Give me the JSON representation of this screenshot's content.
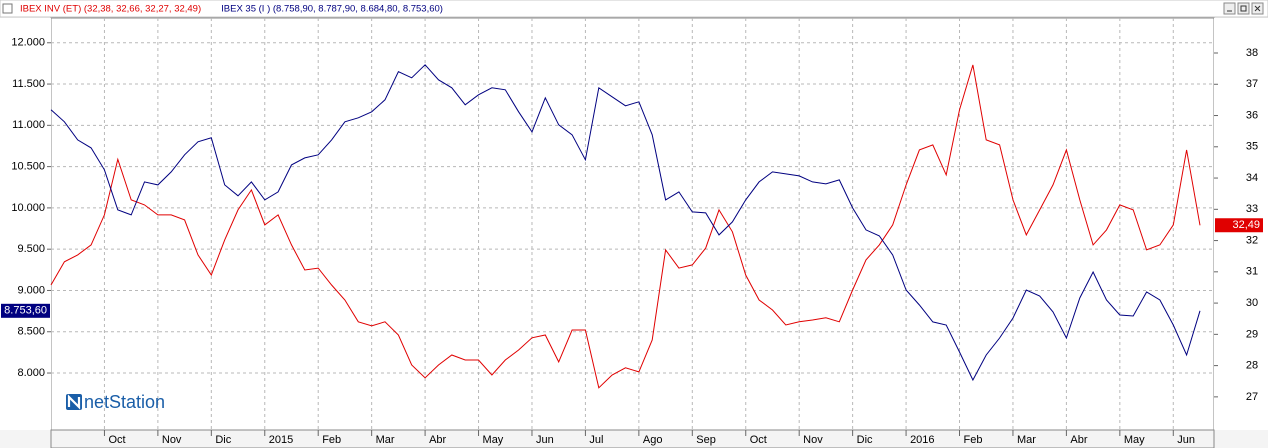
{
  "chart_data": {
    "type": "line",
    "categories": [
      null,
      null,
      null,
      null,
      "Oct",
      null,
      null,
      null,
      "Nov",
      null,
      null,
      null,
      "Dic",
      null,
      null,
      null,
      "2015",
      null,
      null,
      null,
      "Feb",
      null,
      null,
      null,
      "Mar",
      null,
      null,
      null,
      "Abr",
      null,
      null,
      null,
      "May",
      null,
      null,
      null,
      "Jun",
      null,
      null,
      null,
      "Jul",
      null,
      null,
      null,
      "Ago",
      null,
      null,
      null,
      "Sep",
      null,
      null,
      null,
      "Oct",
      null,
      null,
      null,
      "Nov",
      null,
      null,
      null,
      "Dic",
      null,
      null,
      null,
      "2016",
      null,
      null,
      null,
      "Feb",
      null,
      null,
      null,
      "Mar",
      null,
      null,
      null,
      "Abr",
      null,
      null,
      null,
      "May",
      null,
      null,
      null,
      "Jun",
      null,
      null
    ],
    "series": [
      {
        "name": "IBEX INV (ET) (32,38, 32,66, 32,27, 32,49)",
        "color": "#e00000",
        "axis": "y2",
        "values": [
          30.58,
          31.32,
          31.54,
          31.86,
          32.82,
          34.6,
          33.3,
          33.14,
          32.82,
          32.82,
          32.66,
          31.54,
          30.9,
          32.02,
          32.98,
          33.62,
          32.5,
          32.82,
          31.86,
          31.06,
          31.12,
          30.58,
          30.1,
          29.4,
          29.27,
          29.4,
          28.98,
          28.02,
          27.61,
          28.02,
          28.34,
          28.18,
          28.18,
          27.7,
          28.18,
          28.5,
          28.89,
          28.98,
          28.12,
          29.14,
          29.14,
          27.29,
          27.7,
          27.93,
          27.8,
          28.82,
          31.7,
          31.12,
          31.22,
          31.76,
          32.98,
          32.28,
          30.9,
          30.1,
          29.78,
          29.3,
          29.4,
          29.46,
          29.53,
          29.4,
          30.42,
          31.38,
          31.86,
          32.5,
          33.78,
          34.9,
          35.06,
          34.1,
          36.18,
          37.62,
          35.22,
          35.06,
          33.3,
          32.18,
          32.98,
          33.78,
          34.9,
          33.3,
          31.86,
          32.34,
          33.14,
          32.98,
          31.7,
          31.86,
          32.5,
          34.9,
          32.49
        ],
        "value_labels": [
          null,
          null,
          null,
          null,
          null,
          null,
          null,
          null,
          null,
          null,
          null,
          null,
          null,
          null,
          null,
          null,
          null,
          null,
          null,
          null,
          null,
          null,
          null,
          null,
          null,
          null,
          null,
          null,
          null,
          null,
          null,
          null,
          null,
          null,
          null,
          null,
          null,
          null,
          null,
          null,
          null,
          null,
          null,
          null,
          null,
          null,
          null,
          null,
          null,
          null,
          null,
          null,
          null,
          null,
          null,
          null,
          null,
          null,
          null,
          null,
          null,
          null,
          null,
          null,
          null,
          null,
          null,
          null,
          null,
          null,
          null,
          null,
          null,
          null,
          null,
          null,
          null,
          null,
          null,
          null,
          null,
          null,
          null,
          null,
          null,
          null,
          "32,49"
        ]
      },
      {
        "name": "IBEX 35 (I ) (8.758,90, 8.787,90, 8.684,80, 8.753,60)",
        "color": "#000080",
        "axis": "y",
        "values": [
          11188,
          11043,
          10824,
          10727,
          10461,
          9976,
          9915,
          10315,
          10279,
          10436,
          10643,
          10800,
          10849,
          10279,
          10146,
          10315,
          10097,
          10194,
          10521,
          10606,
          10643,
          10824,
          11043,
          11091,
          11164,
          11309,
          11649,
          11576,
          11733,
          11552,
          11455,
          11249,
          11370,
          11455,
          11430,
          11164,
          10921,
          11333,
          11006,
          10885,
          10582,
          11455,
          11346,
          11236,
          11285,
          10885,
          10097,
          10194,
          9952,
          9940,
          9673,
          9830,
          10097,
          10315,
          10436,
          10412,
          10388,
          10315,
          10291,
          10339,
          10000,
          9734,
          9661,
          9430,
          9006,
          8824,
          8619,
          8582,
          8255,
          7915,
          8218,
          8424,
          8667,
          9006,
          8933,
          8740,
          8424,
          8909,
          9224,
          8885,
          8703,
          8691,
          8982,
          8885,
          8582,
          8218,
          8753.6
        ],
        "value_labels": [
          null,
          null,
          null,
          null,
          null,
          null,
          null,
          null,
          null,
          null,
          null,
          null,
          null,
          null,
          null,
          null,
          null,
          null,
          null,
          null,
          null,
          null,
          null,
          null,
          null,
          null,
          null,
          null,
          null,
          null,
          null,
          null,
          null,
          null,
          null,
          null,
          null,
          null,
          null,
          null,
          null,
          null,
          null,
          null,
          null,
          null,
          null,
          null,
          null,
          null,
          null,
          null,
          null,
          null,
          null,
          null,
          null,
          null,
          null,
          null,
          null,
          null,
          null,
          null,
          null,
          null,
          null,
          null,
          null,
          null,
          null,
          null,
          null,
          null,
          null,
          null,
          null,
          null,
          null,
          null,
          null,
          null,
          null,
          null,
          null,
          null,
          "8.753,60"
        ]
      }
    ],
    "ylim": [
      7310,
      12300
    ],
    "yticks": [
      {
        "value": 8000,
        "label": "8.000"
      },
      {
        "value": 8500,
        "label": "8.500"
      },
      {
        "value": 9000,
        "label": "9.000"
      },
      {
        "value": 9500,
        "label": "9.500"
      },
      {
        "value": 10000,
        "label": "10.000"
      },
      {
        "value": 10500,
        "label": "10.500"
      },
      {
        "value": 11000,
        "label": "11.000"
      },
      {
        "value": 11500,
        "label": "11.500"
      },
      {
        "value": 12000,
        "label": "12.000"
      }
    ],
    "y2lim": [
      25.94,
      39.12
    ],
    "y2ticks": [
      27,
      28,
      29,
      30,
      31,
      32,
      33,
      34,
      35,
      36,
      37,
      38
    ],
    "grid": true,
    "legend": "top-left",
    "logo": "netStation"
  }
}
